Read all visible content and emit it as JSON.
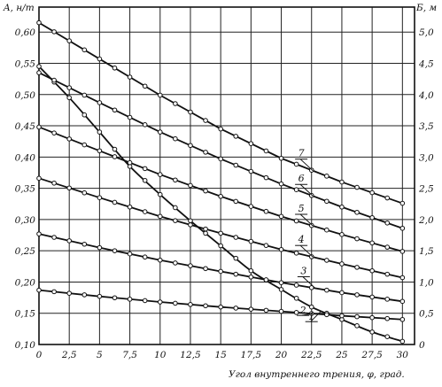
{
  "chart_data": {
    "type": "line",
    "xlabel": "Угол внутреннего трения,   φ, град.",
    "ylabel_left": "A, н/т",
    "ylabel_right": "Б, м",
    "xlim": [
      0,
      31
    ],
    "ylim_left": [
      0.1,
      0.64
    ],
    "ylim_right": [
      0,
      5.4
    ],
    "x_ticks": [
      "0",
      "2,5",
      "5",
      "7,5",
      "10",
      "12,5",
      "15",
      "17,5",
      "20",
      "22,5",
      "25",
      "27,5",
      "30"
    ],
    "y_left_ticks": [
      "0,10",
      "0,15",
      "0,20",
      "0,25",
      "0,30",
      "0,35",
      "0,40",
      "0,45",
      "0,50",
      "0,55",
      "0,60"
    ],
    "y_right_ticks": [
      "0",
      "0,5",
      "1,0",
      "1,5",
      "2,0",
      "2,5",
      "3,0",
      "3,5",
      "4,0",
      "4,5",
      "5,0"
    ],
    "grid": true,
    "series": [
      {
        "name": "1",
        "axis": "right",
        "points": [
          [
            0,
            4.45
          ],
          [
            2.5,
            3.95
          ],
          [
            5,
            3.4
          ],
          [
            7.5,
            2.85
          ],
          [
            10,
            2.4
          ],
          [
            12.5,
            1.98
          ],
          [
            15,
            1.58
          ],
          [
            17.5,
            1.18
          ],
          [
            20,
            0.88
          ],
          [
            22.5,
            0.6
          ],
          [
            25,
            0.4
          ],
          [
            27.5,
            0.2
          ],
          [
            30,
            0.05
          ]
        ]
      },
      {
        "name": "2",
        "axis": "left",
        "points": [
          [
            0,
            0.187
          ],
          [
            5,
            0.177
          ],
          [
            10,
            0.168
          ],
          [
            15,
            0.16
          ],
          [
            20,
            0.153
          ],
          [
            25,
            0.146
          ],
          [
            30,
            0.14
          ]
        ]
      },
      {
        "name": "3",
        "axis": "left",
        "points": [
          [
            0,
            0.277
          ],
          [
            5,
            0.255
          ],
          [
            10,
            0.235
          ],
          [
            15,
            0.217
          ],
          [
            20,
            0.199
          ],
          [
            25,
            0.183
          ],
          [
            30,
            0.169
          ]
        ]
      },
      {
        "name": "4",
        "axis": "left",
        "points": [
          [
            0,
            0.366
          ],
          [
            5,
            0.335
          ],
          [
            10,
            0.305
          ],
          [
            15,
            0.278
          ],
          [
            20,
            0.252
          ],
          [
            25,
            0.229
          ],
          [
            30,
            0.207
          ]
        ]
      },
      {
        "name": "5",
        "axis": "left",
        "points": [
          [
            0,
            0.448
          ],
          [
            5,
            0.41
          ],
          [
            10,
            0.372
          ],
          [
            15,
            0.337
          ],
          [
            20,
            0.305
          ],
          [
            25,
            0.276
          ],
          [
            30,
            0.249
          ]
        ]
      },
      {
        "name": "6",
        "axis": "left",
        "points": [
          [
            0,
            0.535
          ],
          [
            5,
            0.487
          ],
          [
            10,
            0.44
          ],
          [
            15,
            0.397
          ],
          [
            20,
            0.357
          ],
          [
            25,
            0.32
          ],
          [
            30,
            0.286
          ]
        ]
      },
      {
        "name": "7",
        "axis": "left",
        "points": [
          [
            0,
            0.615
          ],
          [
            5,
            0.557
          ],
          [
            10,
            0.499
          ],
          [
            15,
            0.445
          ],
          [
            20,
            0.398
          ],
          [
            25,
            0.36
          ],
          [
            30,
            0.326
          ]
        ]
      }
    ]
  }
}
